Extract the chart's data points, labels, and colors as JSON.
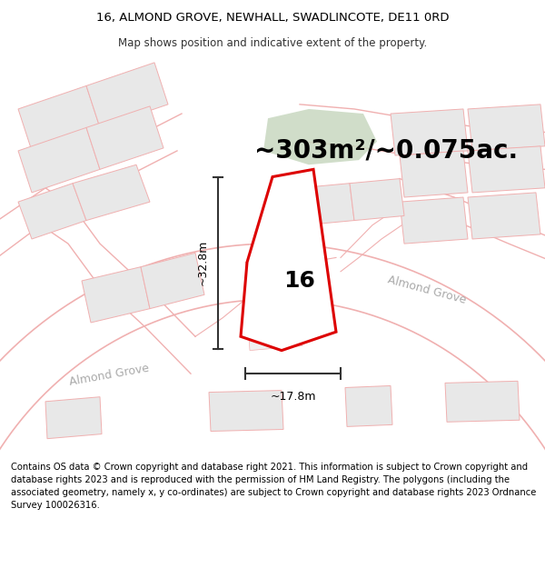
{
  "title_line1": "16, ALMOND GROVE, NEWHALL, SWADLINCOTE, DE11 0RD",
  "title_line2": "Map shows position and indicative extent of the property.",
  "area_text": "~303m²/~0.075ac.",
  "label_number": "16",
  "label_width": "~17.8m",
  "label_height": "~32.8m",
  "road_label_left": "Almond Grove",
  "road_label_right": "Almond Grove",
  "footer_text": "Contains OS data © Crown copyright and database right 2021. This information is subject to Crown copyright and database rights 2023 and is reproduced with the permission of HM Land Registry. The polygons (including the associated geometry, namely x, y co-ordinates) are subject to Crown copyright and database rights 2023 Ordnance Survey 100026316.",
  "bg_color": "#ffffff",
  "plot_color": "#dd0000",
  "plot_fill": "#ffffff",
  "green_color": "#c8d8c0",
  "building_fill": "#e8e8e8",
  "building_edge": "#f0b0b0",
  "road_color": "#f0b0b0",
  "road_label_color": "#aaaaaa",
  "dim_color": "#333333",
  "title_fontsize": 9.5,
  "subtitle_fontsize": 8.5,
  "area_fontsize": 20,
  "number_fontsize": 18,
  "footer_fontsize": 7.2
}
